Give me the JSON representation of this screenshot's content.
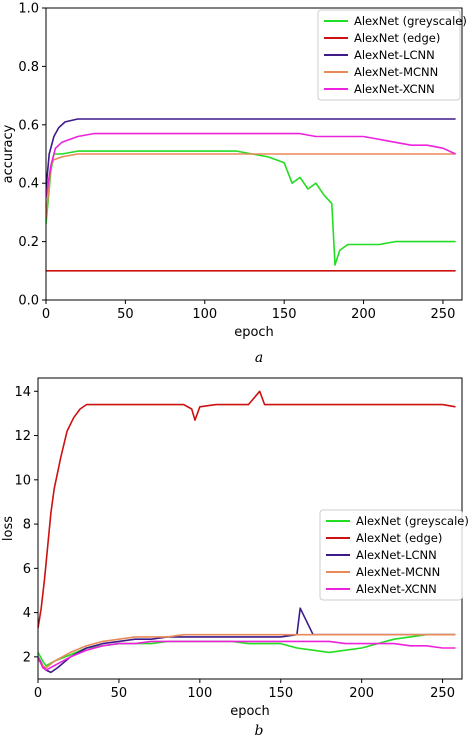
{
  "chart_data": [
    {
      "type": "line",
      "caption": "a",
      "xlabel": "epoch",
      "ylabel": "accuracy",
      "xlim": [
        0,
        262
      ],
      "ylim": [
        0.0,
        1.0
      ],
      "xticks": [
        0,
        50,
        100,
        150,
        200,
        250
      ],
      "yticks": [
        0.0,
        0.2,
        0.4,
        0.6,
        0.8,
        1.0
      ],
      "xtick_labels": [
        "0",
        "50",
        "100",
        "150",
        "200",
        "250"
      ],
      "ytick_labels": [
        "0.0",
        "0.2",
        "0.4",
        "0.6",
        "0.8",
        "1.0"
      ],
      "legend_position": "top-right",
      "grid": false,
      "series": [
        {
          "name": "AlexNet (greyscale)",
          "color": "#22dd22",
          "x": [
            0,
            3,
            5,
            10,
            20,
            30,
            40,
            50,
            60,
            70,
            80,
            90,
            100,
            110,
            120,
            130,
            140,
            150,
            155,
            160,
            165,
            170,
            175,
            180,
            182,
            185,
            190,
            200,
            210,
            220,
            230,
            240,
            250,
            258
          ],
          "y": [
            0.26,
            0.44,
            0.5,
            0.5,
            0.51,
            0.51,
            0.51,
            0.51,
            0.51,
            0.51,
            0.51,
            0.51,
            0.51,
            0.51,
            0.51,
            0.5,
            0.49,
            0.47,
            0.4,
            0.42,
            0.38,
            0.4,
            0.36,
            0.33,
            0.12,
            0.17,
            0.19,
            0.19,
            0.19,
            0.2,
            0.2,
            0.2,
            0.2,
            0.2
          ]
        },
        {
          "name": "AlexNet (edge)",
          "color": "#cc1111",
          "x": [
            0,
            50,
            100,
            150,
            200,
            258
          ],
          "y": [
            0.1,
            0.1,
            0.1,
            0.1,
            0.1,
            0.1
          ]
        },
        {
          "name": "AlexNet-LCNN",
          "color": "#3d1a8a",
          "x": [
            0,
            2,
            5,
            8,
            12,
            20,
            30,
            40,
            50,
            60,
            70,
            80,
            90,
            100,
            110,
            120,
            130,
            140,
            150,
            160,
            170,
            180,
            190,
            200,
            210,
            220,
            230,
            240,
            250,
            258
          ],
          "y": [
            0.38,
            0.5,
            0.56,
            0.59,
            0.61,
            0.62,
            0.62,
            0.62,
            0.62,
            0.62,
            0.62,
            0.62,
            0.62,
            0.62,
            0.62,
            0.62,
            0.62,
            0.62,
            0.62,
            0.62,
            0.62,
            0.62,
            0.62,
            0.62,
            0.62,
            0.62,
            0.62,
            0.62,
            0.62,
            0.62
          ]
        },
        {
          "name": "AlexNet-MCNN",
          "color": "#e8895a",
          "x": [
            0,
            3,
            5,
            10,
            20,
            30,
            40,
            50,
            60,
            70,
            80,
            90,
            100,
            110,
            120,
            130,
            140,
            150,
            160,
            170,
            180,
            190,
            200,
            210,
            220,
            230,
            240,
            250,
            258
          ],
          "y": [
            0.28,
            0.46,
            0.48,
            0.49,
            0.5,
            0.5,
            0.5,
            0.5,
            0.5,
            0.5,
            0.5,
            0.5,
            0.5,
            0.5,
            0.5,
            0.5,
            0.5,
            0.5,
            0.5,
            0.5,
            0.5,
            0.5,
            0.5,
            0.5,
            0.5,
            0.5,
            0.5,
            0.5,
            0.5
          ]
        },
        {
          "name": "AlexNet-XCNN",
          "color": "#ee22dd",
          "x": [
            0,
            3,
            6,
            10,
            20,
            30,
            40,
            50,
            60,
            70,
            80,
            90,
            100,
            110,
            120,
            130,
            140,
            150,
            160,
            170,
            180,
            190,
            200,
            210,
            220,
            230,
            240,
            250,
            258
          ],
          "y": [
            0.35,
            0.46,
            0.52,
            0.54,
            0.56,
            0.57,
            0.57,
            0.57,
            0.57,
            0.57,
            0.57,
            0.57,
            0.57,
            0.57,
            0.57,
            0.57,
            0.57,
            0.57,
            0.57,
            0.56,
            0.56,
            0.56,
            0.56,
            0.55,
            0.54,
            0.53,
            0.53,
            0.52,
            0.5
          ]
        }
      ]
    },
    {
      "type": "line",
      "caption": "b",
      "xlabel": "epoch",
      "ylabel": "loss",
      "xlim": [
        0,
        262
      ],
      "ylim": [
        1.0,
        14.6
      ],
      "xticks": [
        0,
        50,
        100,
        150,
        200,
        250
      ],
      "yticks": [
        2,
        4,
        6,
        8,
        10,
        12,
        14
      ],
      "xtick_labels": [
        "0",
        "50",
        "100",
        "150",
        "200",
        "250"
      ],
      "ytick_labels": [
        "2",
        "4",
        "6",
        "8",
        "10",
        "12",
        "14"
      ],
      "legend_position": "center-right",
      "grid": false,
      "series": [
        {
          "name": "AlexNet (greyscale)",
          "color": "#22dd22",
          "x": [
            0,
            3,
            5,
            10,
            20,
            30,
            40,
            50,
            60,
            70,
            80,
            90,
            100,
            110,
            120,
            130,
            140,
            150,
            160,
            170,
            180,
            190,
            200,
            210,
            220,
            230,
            240,
            250,
            258
          ],
          "y": [
            2.2,
            1.8,
            1.6,
            1.8,
            2.1,
            2.4,
            2.5,
            2.6,
            2.6,
            2.6,
            2.7,
            2.7,
            2.7,
            2.7,
            2.7,
            2.6,
            2.6,
            2.6,
            2.4,
            2.3,
            2.2,
            2.3,
            2.4,
            2.6,
            2.8,
            2.9,
            3.0,
            3.0,
            3.0
          ]
        },
        {
          "name": "AlexNet (edge)",
          "color": "#cc1111",
          "x": [
            0,
            2,
            4,
            6,
            8,
            10,
            14,
            18,
            22,
            26,
            30,
            40,
            50,
            60,
            70,
            80,
            90,
            95,
            97,
            100,
            110,
            120,
            130,
            137,
            140,
            150,
            160,
            170,
            180,
            190,
            200,
            210,
            220,
            230,
            240,
            250,
            258
          ],
          "y": [
            3.3,
            4.2,
            5.5,
            7.0,
            8.5,
            9.6,
            11.0,
            12.2,
            12.8,
            13.2,
            13.4,
            13.4,
            13.4,
            13.4,
            13.4,
            13.4,
            13.4,
            13.2,
            12.7,
            13.3,
            13.4,
            13.4,
            13.4,
            14.0,
            13.4,
            13.4,
            13.4,
            13.4,
            13.4,
            13.4,
            13.4,
            13.4,
            13.4,
            13.4,
            13.4,
            13.4,
            13.3
          ]
        },
        {
          "name": "AlexNet-LCNN",
          "color": "#3d1a8a",
          "x": [
            0,
            3,
            5,
            8,
            12,
            20,
            30,
            40,
            50,
            60,
            70,
            80,
            90,
            100,
            110,
            120,
            130,
            140,
            150,
            160,
            162,
            170,
            180,
            190,
            200,
            210,
            220,
            230,
            240,
            250,
            258
          ],
          "y": [
            2.0,
            1.6,
            1.4,
            1.3,
            1.5,
            2.0,
            2.4,
            2.6,
            2.7,
            2.8,
            2.8,
            2.9,
            2.9,
            2.9,
            2.9,
            2.9,
            2.9,
            2.9,
            2.9,
            3.0,
            4.2,
            3.0,
            3.0,
            3.0,
            3.0,
            3.0,
            3.0,
            3.0,
            3.0,
            3.0,
            3.0
          ]
        },
        {
          "name": "AlexNet-MCNN",
          "color": "#e8895a",
          "x": [
            0,
            3,
            5,
            10,
            20,
            30,
            40,
            50,
            60,
            70,
            80,
            90,
            100,
            110,
            120,
            130,
            140,
            150,
            160,
            170,
            180,
            190,
            200,
            210,
            220,
            230,
            240,
            250,
            258
          ],
          "y": [
            1.9,
            1.6,
            1.5,
            1.8,
            2.2,
            2.5,
            2.7,
            2.8,
            2.9,
            2.9,
            2.9,
            3.0,
            3.0,
            3.0,
            3.0,
            3.0,
            3.0,
            3.0,
            3.0,
            3.0,
            3.0,
            3.0,
            3.0,
            3.0,
            3.0,
            3.0,
            3.0,
            3.0,
            3.0
          ]
        },
        {
          "name": "AlexNet-XCNN",
          "color": "#ee22dd",
          "x": [
            0,
            3,
            5,
            10,
            20,
            30,
            40,
            50,
            60,
            70,
            80,
            90,
            100,
            110,
            120,
            130,
            140,
            150,
            160,
            170,
            180,
            190,
            200,
            210,
            220,
            230,
            240,
            250,
            258
          ],
          "y": [
            2.0,
            1.5,
            1.4,
            1.6,
            2.0,
            2.3,
            2.5,
            2.6,
            2.6,
            2.7,
            2.7,
            2.7,
            2.7,
            2.7,
            2.7,
            2.7,
            2.7,
            2.7,
            2.7,
            2.7,
            2.7,
            2.6,
            2.6,
            2.6,
            2.6,
            2.5,
            2.5,
            2.4,
            2.4
          ]
        }
      ]
    }
  ]
}
